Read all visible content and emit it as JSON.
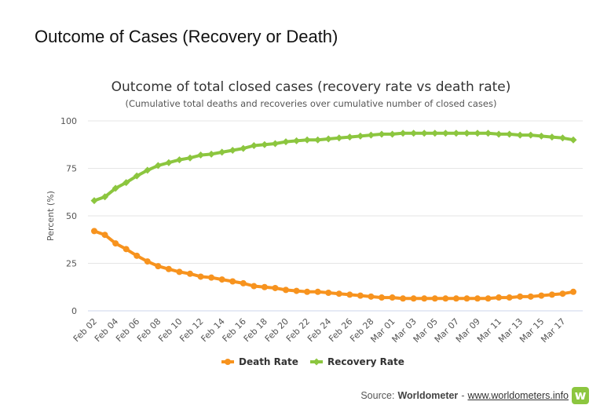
{
  "page": {
    "heading": "Outcome of Cases (Recovery or Death)"
  },
  "source": {
    "prefix": "Source: ",
    "brand": "Worldometer",
    "separator": " - ",
    "link_text": "www.worldometers.info",
    "logo_glyph": "w"
  },
  "chart_data": {
    "type": "line",
    "title": "Outcome of total closed cases (recovery rate vs death rate)",
    "subtitle": "(Cumulative total deaths and recoveries over cumulative number of closed cases)",
    "xlabel": "",
    "ylabel": "Percent (%)",
    "ylim": [
      0,
      100
    ],
    "yticks": [
      0,
      25,
      50,
      75,
      100
    ],
    "grid": true,
    "legend_position": "bottom-center",
    "categories": [
      "Feb 02",
      "Feb 03",
      "Feb 04",
      "Feb 05",
      "Feb 06",
      "Feb 07",
      "Feb 08",
      "Feb 09",
      "Feb 10",
      "Feb 11",
      "Feb 12",
      "Feb 13",
      "Feb 14",
      "Feb 15",
      "Feb 16",
      "Feb 17",
      "Feb 18",
      "Feb 19",
      "Feb 20",
      "Feb 21",
      "Feb 22",
      "Feb 23",
      "Feb 24",
      "Feb 25",
      "Feb 26",
      "Feb 27",
      "Feb 28",
      "Feb 29",
      "Mar 01",
      "Mar 02",
      "Mar 03",
      "Mar 04",
      "Mar 05",
      "Mar 06",
      "Mar 07",
      "Mar 08",
      "Mar 09",
      "Mar 10",
      "Mar 11",
      "Mar 12",
      "Mar 13",
      "Mar 14",
      "Mar 15",
      "Mar 16",
      "Mar 17",
      "Mar 18"
    ],
    "tick_labels": [
      "Feb 02",
      "Feb 04",
      "Feb 06",
      "Feb 08",
      "Feb 10",
      "Feb 12",
      "Feb 14",
      "Feb 16",
      "Feb 18",
      "Feb 20",
      "Feb 22",
      "Feb 24",
      "Feb 26",
      "Feb 28",
      "Mar 01",
      "Mar 03",
      "Mar 05",
      "Mar 07",
      "Mar 09",
      "Mar 11",
      "Mar 13",
      "Mar 15",
      "Mar 17"
    ],
    "series": [
      {
        "name": "Death Rate",
        "color": "#f7931e",
        "values": [
          42,
          40,
          35.5,
          32.5,
          29,
          26,
          23.5,
          22,
          20.5,
          19.5,
          18,
          17.5,
          16.5,
          15.5,
          14.5,
          13,
          12.5,
          12,
          11,
          10.5,
          10,
          10,
          9.5,
          9,
          8.5,
          8,
          7.5,
          7,
          7,
          6.5,
          6.5,
          6.5,
          6.5,
          6.5,
          6.5,
          6.5,
          6.5,
          6.5,
          7,
          7,
          7.5,
          7.5,
          8,
          8.5,
          9,
          10
        ]
      },
      {
        "name": "Recovery Rate",
        "color": "#8cc63f",
        "values": [
          58,
          60,
          64.5,
          67.5,
          71,
          74,
          76.5,
          78,
          79.5,
          80.5,
          82,
          82.5,
          83.5,
          84.5,
          85.5,
          87,
          87.5,
          88,
          89,
          89.5,
          90,
          90,
          90.5,
          91,
          91.5,
          92,
          92.5,
          93,
          93,
          93.5,
          93.5,
          93.5,
          93.5,
          93.5,
          93.5,
          93.5,
          93.5,
          93.5,
          93,
          93,
          92.5,
          92.5,
          92,
          91.5,
          91,
          90
        ]
      }
    ]
  }
}
